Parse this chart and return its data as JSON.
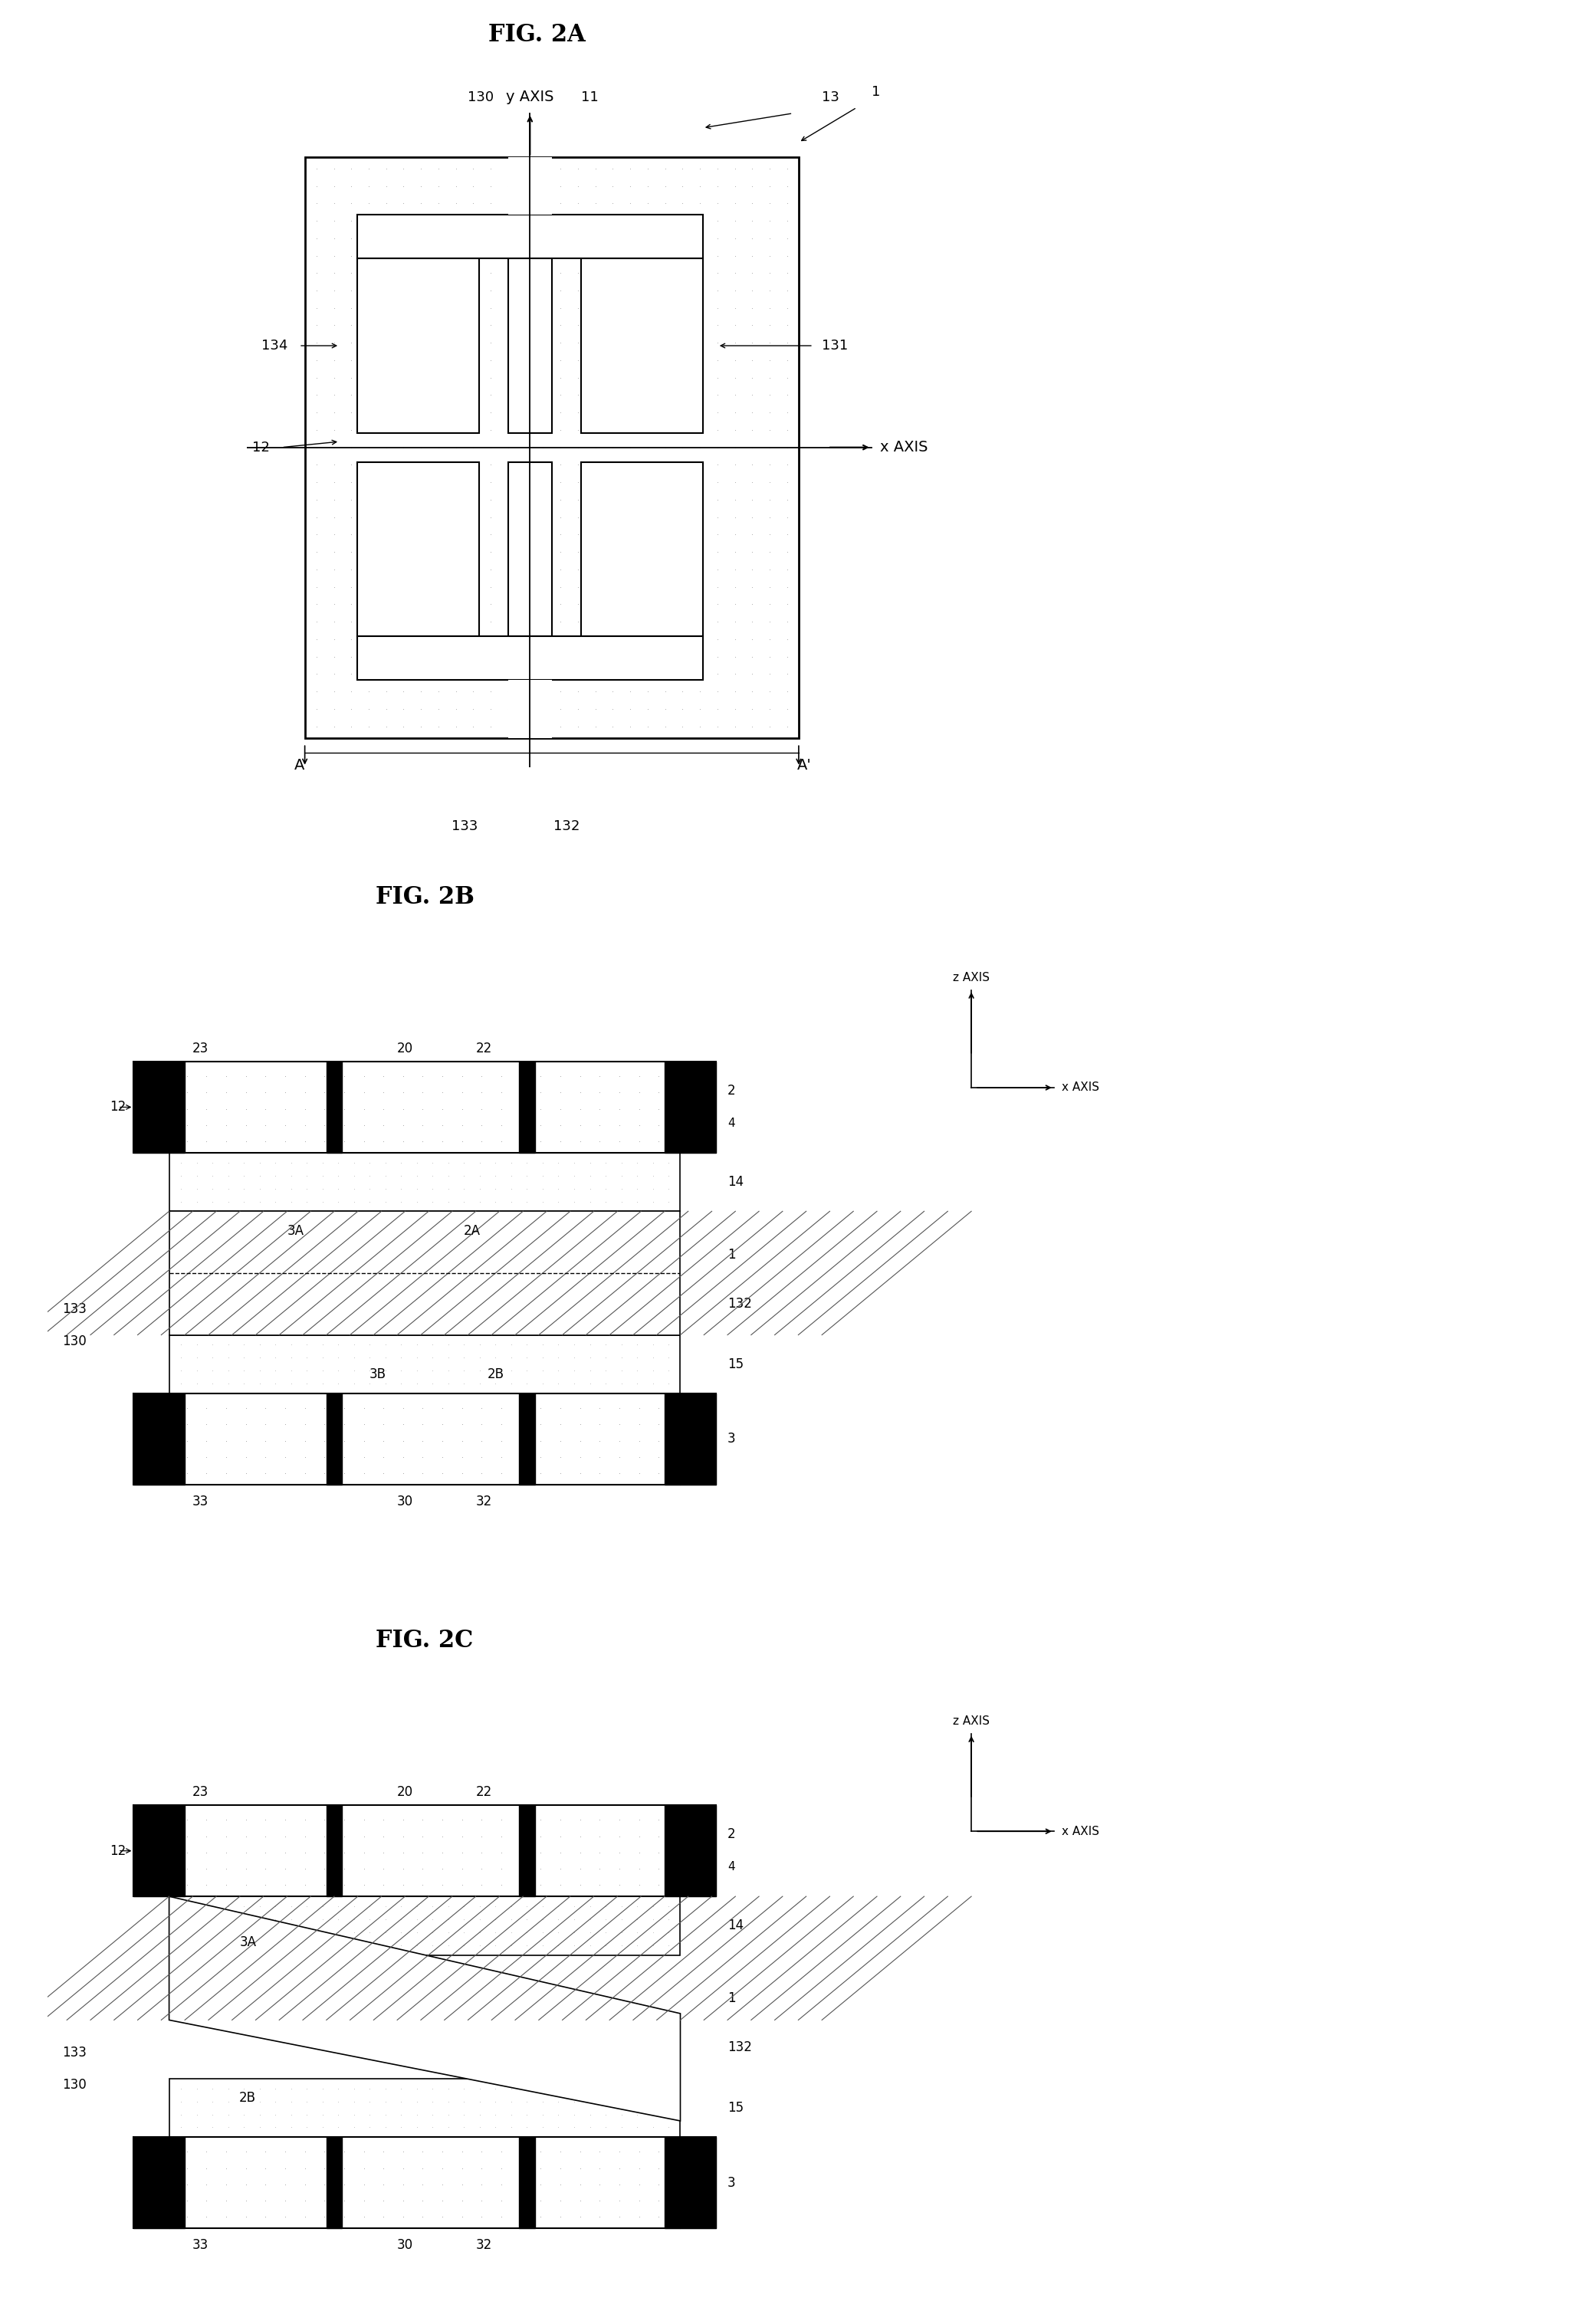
{
  "fig_title_2A": "FIG. 2A",
  "fig_title_2B": "FIG. 2B",
  "fig_title_2C": "FIG. 2C",
  "bg_color": "#ffffff",
  "dot_pattern_color": "#cccccc",
  "hatch_color": "#555555",
  "black": "#000000",
  "gray_light": "#d0d0d0",
  "gray_dot": "#bbbbbb"
}
